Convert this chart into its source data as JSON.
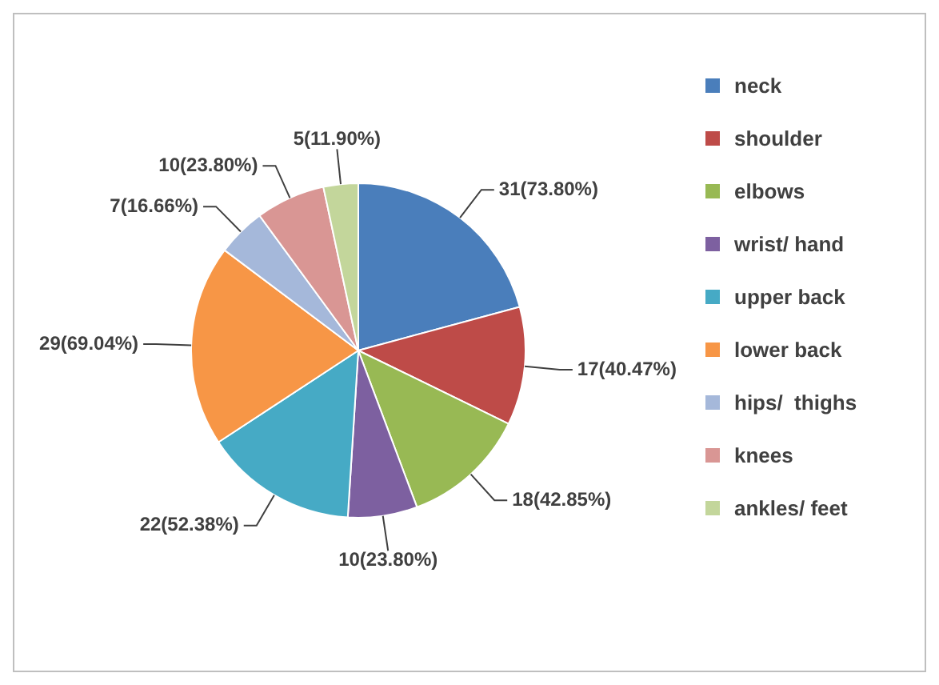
{
  "chart_data": {
    "type": "pie",
    "categories": [
      "neck",
      "shoulder",
      "elbows",
      "wrist/ hand",
      "upper back",
      "lower back",
      "hips/  thighs",
      "knees",
      "ankles/ feet"
    ],
    "values": [
      31,
      17,
      18,
      10,
      22,
      29,
      7,
      10,
      5
    ],
    "value_labels": [
      "31(73.80%)",
      "17(40.47%)",
      "18(42.85%)",
      "10(23.80%)",
      "22(52.38%)",
      "29(69.04%)",
      "7(16.66%)",
      "10(23.80%)",
      "5(11.90%)"
    ],
    "colors": [
      "#4a7ebb",
      "#be4b48",
      "#98b954",
      "#7d60a0",
      "#46aac5",
      "#f79646",
      "#a5b8da",
      "#d99694",
      "#c3d69b"
    ],
    "legend": "right"
  }
}
